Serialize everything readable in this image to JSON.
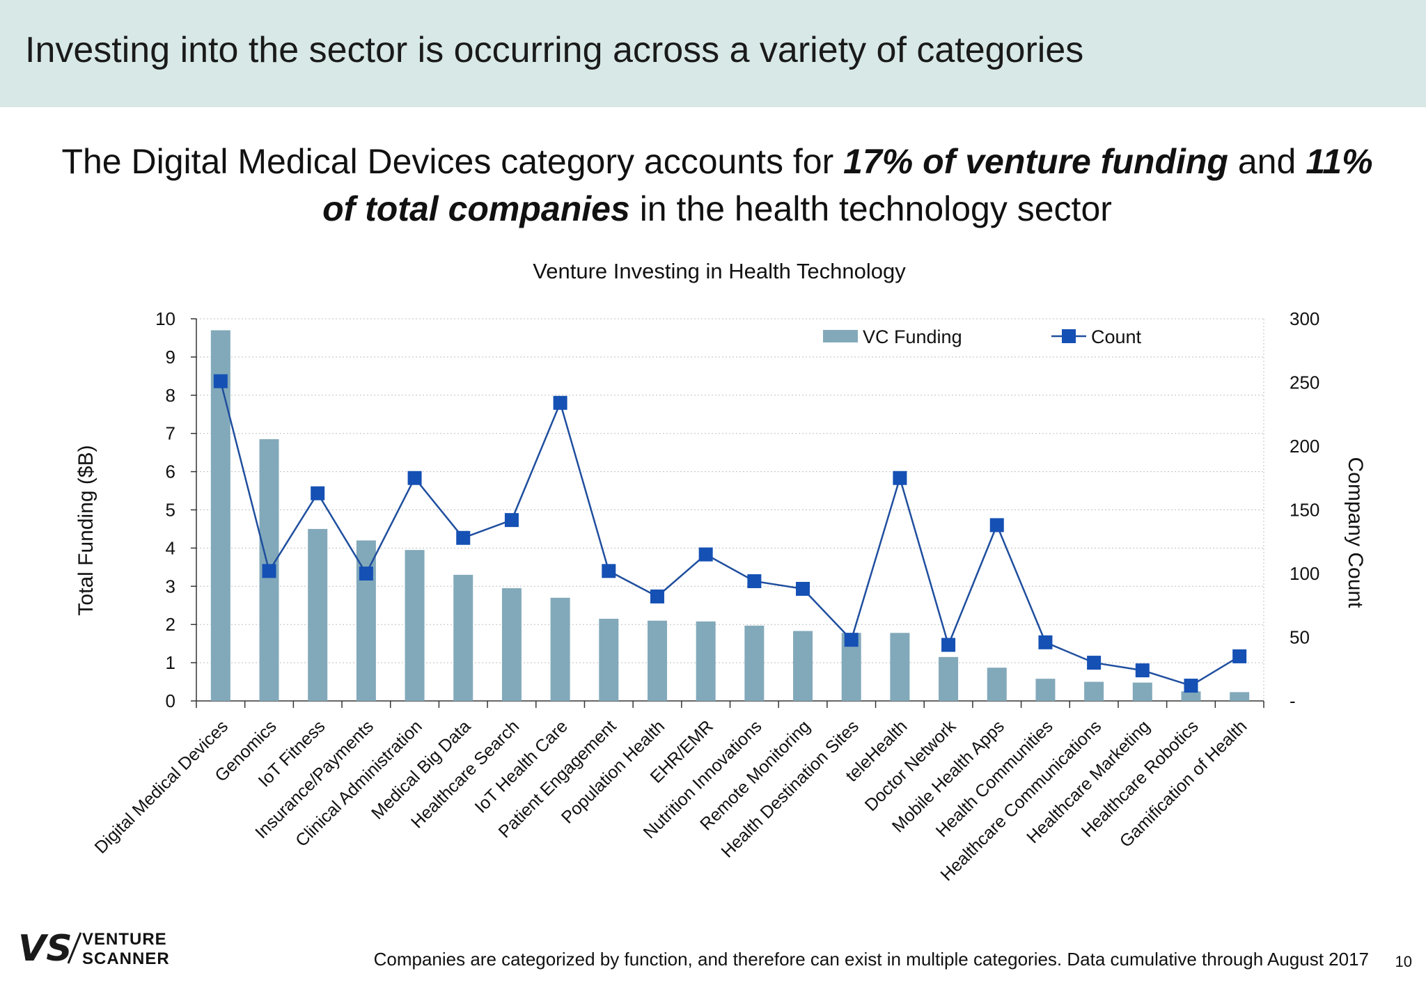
{
  "header": {
    "title": "Investing into the sector is occurring across a variety of categories"
  },
  "headline": {
    "part1": "The Digital Medical Devices category accounts for ",
    "emph1": "17% of venture funding",
    "part2": " and ",
    "emph2": "11% of total companies",
    "part3": " in the health technology sector"
  },
  "footer": {
    "note": "Companies are categorized by function, and therefore can exist in multiple categories. Data cumulative through August 2017",
    "page_number": "10",
    "logo_line1": "VENTURE",
    "logo_line2": "SCANNER"
  },
  "colors": {
    "header_band": "#d7e8e6",
    "bar": "#82a9ba",
    "line": "#1f4e9e",
    "marker": "#1550b4"
  },
  "chart_data": {
    "type": "bar",
    "title": "Venture Investing in Health Technology",
    "ylabel": "Total Funding ($B)",
    "y2label": "Company Count",
    "ylim": [
      0,
      10
    ],
    "y2lim": [
      0,
      300
    ],
    "yticks": [
      "0",
      "1",
      "2",
      "3",
      "4",
      "5",
      "6",
      "7",
      "8",
      "9",
      "10"
    ],
    "y2ticks": [
      "-",
      "50",
      "100",
      "150",
      "200",
      "250",
      "300"
    ],
    "grid": true,
    "legend_position": "top-right",
    "categories": [
      "Digital Medical Devices",
      "Genomics",
      "IoT Fitness",
      "Insurance/Payments",
      "Clinical Administration",
      "Medical Big Data",
      "Healthcare Search",
      "IoT Health Care",
      "Patient Engagement",
      "Population Health",
      "EHR/EMR",
      "Nutrition Innovations",
      "Remote Monitoring",
      "Health Destination Sites",
      "teleHealth",
      "Doctor Network",
      "Mobile Health Apps",
      "Health Communities",
      "Healthcare Communications",
      "Healthcare Marketing",
      "Healthcare Robotics",
      "Gamification of Health"
    ],
    "series": [
      {
        "name": "VC Funding",
        "type": "bar",
        "axis": "left",
        "values": [
          9.7,
          6.85,
          4.5,
          4.2,
          3.95,
          3.3,
          2.95,
          2.7,
          2.15,
          2.1,
          2.08,
          1.97,
          1.83,
          1.78,
          1.78,
          1.15,
          0.87,
          0.58,
          0.5,
          0.48,
          0.25,
          0.23
        ]
      },
      {
        "name": "Count",
        "type": "line",
        "axis": "right",
        "values": [
          251,
          102,
          163,
          100,
          175,
          128,
          142,
          234,
          102,
          82,
          115,
          94,
          88,
          48,
          175,
          44,
          138,
          46,
          30,
          24,
          12,
          35
        ]
      }
    ]
  }
}
